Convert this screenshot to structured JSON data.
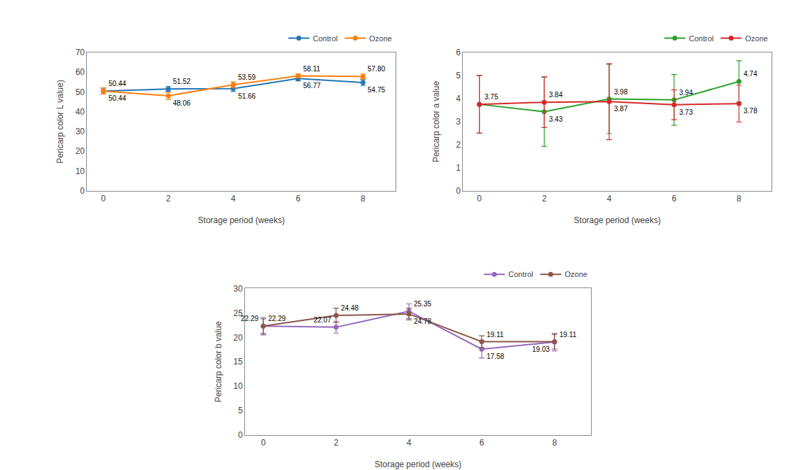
{
  "chart_data": [
    {
      "type": "line",
      "x": [
        0,
        2,
        4,
        6,
        8
      ],
      "xlabel": "Storage period (weeks)",
      "ylabel": "Pericarp color L value)",
      "xlim": [
        -0.5,
        9
      ],
      "xticks": [
        0,
        2,
        4,
        6,
        8
      ],
      "ylim": [
        0,
        70
      ],
      "yticks": [
        0,
        10,
        20,
        30,
        40,
        50,
        60,
        70
      ],
      "grid": false,
      "legend": "upper right",
      "data_labels": true,
      "marker": "circle",
      "series": [
        {
          "name": "Control",
          "values": [
            50.44,
            51.52,
            51.66,
            56.77,
            54.75
          ],
          "errors": [
            1.5,
            1.2,
            1.5,
            1.2,
            1.5
          ],
          "value_labels": [
            "50.44",
            "51.52",
            "51.66",
            "56.77",
            "54.75"
          ]
        },
        {
          "name": "Ozone",
          "values": [
            50.44,
            48.06,
            53.59,
            58.11,
            57.8
          ],
          "errors": [
            1.5,
            1.8,
            1.5,
            1.0,
            1.2
          ],
          "value_labels": [
            "50.44",
            "48.06",
            "53.59",
            "58.11",
            "57.80"
          ]
        }
      ]
    },
    {
      "type": "line",
      "x": [
        0,
        2,
        4,
        6,
        8
      ],
      "xlabel": "Storage period (weeks)",
      "ylabel": "Pericarp color a value",
      "xlim": [
        -0.5,
        9
      ],
      "xticks": [
        0,
        2,
        4,
        6,
        8
      ],
      "ylim": [
        0,
        6
      ],
      "yticks": [
        0,
        1,
        2,
        3,
        4,
        5,
        6
      ],
      "grid": false,
      "legend": "upper right",
      "data_labels": true,
      "marker": "circle",
      "series": [
        {
          "name": "Control",
          "values": [
            3.75,
            3.43,
            3.98,
            3.94,
            4.74
          ],
          "errors": [
            1.25,
            1.5,
            1.5,
            1.1,
            0.9
          ],
          "value_labels": [
            null,
            "3.43",
            "3.98",
            "3.94",
            "4.74"
          ]
        },
        {
          "name": "Ozone",
          "values": [
            3.75,
            3.84,
            3.87,
            3.73,
            3.78
          ],
          "errors": [
            1.25,
            1.1,
            1.65,
            0.65,
            0.8
          ],
          "value_labels": [
            "3.75",
            "3.84",
            "3.87",
            "3.73",
            "3.78"
          ]
        }
      ]
    },
    {
      "type": "line",
      "x": [
        0,
        2,
        4,
        6,
        8
      ],
      "xlabel": "Storage period (weeks)",
      "ylabel": "Pericarp color b value",
      "xlim": [
        -0.5,
        9
      ],
      "xticks": [
        0,
        2,
        4,
        6,
        8
      ],
      "ylim": [
        0,
        30
      ],
      "yticks": [
        0,
        5,
        10,
        15,
        20,
        25,
        30
      ],
      "grid": false,
      "legend": "upper right",
      "data_labels": true,
      "marker": "circle",
      "series": [
        {
          "name": "Control",
          "values": [
            22.29,
            22.07,
            25.35,
            17.58,
            19.03
          ],
          "errors": [
            1.8,
            1.2,
            1.5,
            1.8,
            1.8
          ],
          "value_labels": [
            "22.29",
            "22.07",
            "25.35",
            "17.58",
            "19.03"
          ]
        },
        {
          "name": "Ozone",
          "values": [
            22.29,
            24.48,
            24.78,
            19.11,
            19.11
          ],
          "errors": [
            1.5,
            1.5,
            1.2,
            1.2,
            1.5
          ],
          "value_labels": [
            "22.29",
            "24.48",
            "24.78",
            "19.11",
            "19.11"
          ]
        }
      ]
    }
  ]
}
